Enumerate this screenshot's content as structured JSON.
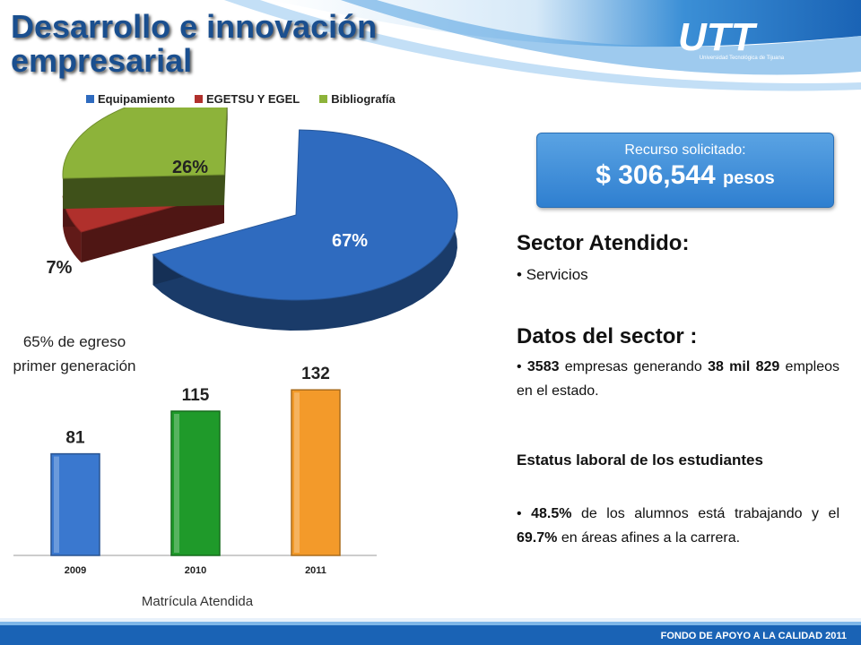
{
  "header": {
    "title_line1": "Desarrollo e innovación",
    "title_line2": "empresarial",
    "logo_text": "UTT",
    "logo_subtitle": "Universidad Tecnológica de Tijuana"
  },
  "callout": {
    "label": "Recurso solicitado:",
    "amount": "$ 306,544",
    "unit": "pesos"
  },
  "sector": {
    "title": "Sector Atendido:",
    "item": "Servicios"
  },
  "datos": {
    "title": "Datos del sector :",
    "n1": "3583",
    "t1": " empresas generando ",
    "n2": "38 mil 829",
    "t2": " empleos en el estado."
  },
  "estatus": {
    "title": "Estatus laboral de los estudiantes",
    "n1": "48.5%",
    "t1": " de los alumnos está trabajando y el ",
    "n2": "69.7%",
    "t2": " en áreas afines a la carrera."
  },
  "egreso": {
    "pct": "65%",
    "text": " de egreso primer generación"
  },
  "footer": {
    "text": "FONDO DE APOYO A LA CALIDAD 2011"
  },
  "colors": {
    "title": "#1a4f8f",
    "equipamiento": "#2f6bbf",
    "egetsu": "#b0302c",
    "bibliografia": "#8db33a",
    "bar2009": "#3a78cf",
    "bar2010": "#1f9a2a",
    "bar2011": "#f39a2a",
    "callout": "#3f8cd9"
  },
  "chart_data": [
    {
      "type": "pie",
      "categories": [
        "Equipamiento",
        "EGETSU Y EGEL",
        "Bibliografía"
      ],
      "values": [
        67,
        7,
        26
      ],
      "labels": [
        "67%",
        "7%",
        "26%"
      ],
      "legend": "top"
    },
    {
      "type": "bar",
      "categories": [
        "2009",
        "2010",
        "2011"
      ],
      "values": [
        81,
        115,
        132
      ],
      "xlabel": "Matrícula Atendida",
      "ylabel": "",
      "ylim": [
        0,
        150
      ]
    }
  ]
}
